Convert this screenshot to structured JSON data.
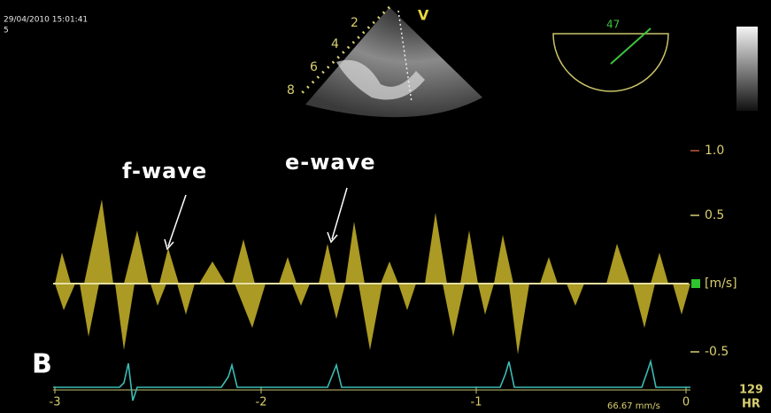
{
  "header": {
    "timestamp": "29/04/2010 15:01:41",
    "index": "5"
  },
  "sector": {
    "marker": "V",
    "depth_labels": [
      "2",
      "4",
      "6",
      "8"
    ]
  },
  "angle_indicator": {
    "value": "47"
  },
  "annotations": [
    "f-wave",
    "e-wave"
  ],
  "panel_label": "B",
  "velocity_axis": {
    "labels": [
      "1.0",
      "0.5",
      "-0.5"
    ],
    "unit": "[m/s]"
  },
  "time_axis": {
    "labels": [
      "-3",
      "-2",
      "-1",
      "0"
    ]
  },
  "heart_rate": {
    "value": "129",
    "label": "HR"
  },
  "sweep_speed": "66.67 mm/s"
}
